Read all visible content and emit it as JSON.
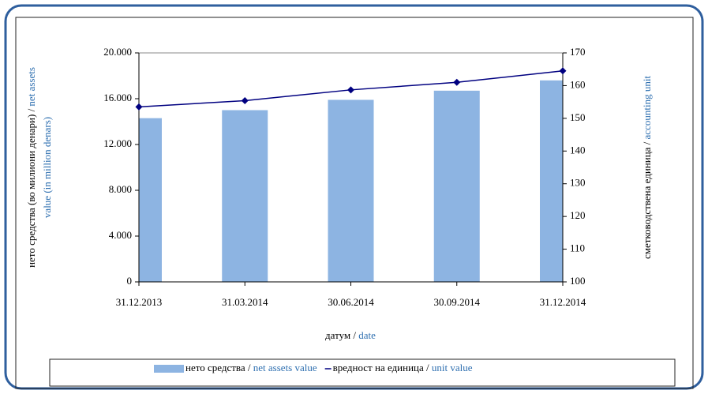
{
  "chart_data": {
    "type": "bar_line",
    "categories": [
      "31.12.2013",
      "31.03.2014",
      "30.06.2014",
      "30.09.2014",
      "31.12.2014"
    ],
    "series": [
      {
        "name": "нето средства /",
        "name_en": "net assets value",
        "color": "#8db4e2",
        "type": "bar",
        "axis": "y",
        "values": [
          14300,
          15000,
          15900,
          16700,
          17600
        ]
      },
      {
        "name": "вредност на единица /",
        "name_en": "unit value",
        "color": "#000080",
        "type": "line",
        "axis": "y2",
        "values": [
          153.5,
          155.4,
          158.7,
          161.0,
          164.5
        ]
      }
    ],
    "ylim": [
      0,
      20000
    ],
    "yticks": [
      0,
      {
        "value": 4000,
        "label": "4.000"
      },
      {
        "value": 8000,
        "label": "8.000"
      },
      {
        "value": 12000,
        "label": "12.000"
      },
      {
        "value": 16000,
        "label": "16.000"
      },
      {
        "value": 20000,
        "label": "20.000"
      }
    ],
    "y2lim": [
      100,
      170
    ],
    "y2ticks": [
      100,
      110,
      120,
      130,
      140,
      150,
      160,
      170
    ],
    "x_label": {
      "mk": "датум /",
      "en": "date"
    },
    "y_label": {
      "mk": "нето средства (во милиони денари) /",
      "en": [
        "net assets",
        "value (in million denars)"
      ]
    },
    "y2_label": {
      "mk": "сметководствена единица /",
      "en": "accounting unit"
    },
    "legend": "bottom"
  }
}
